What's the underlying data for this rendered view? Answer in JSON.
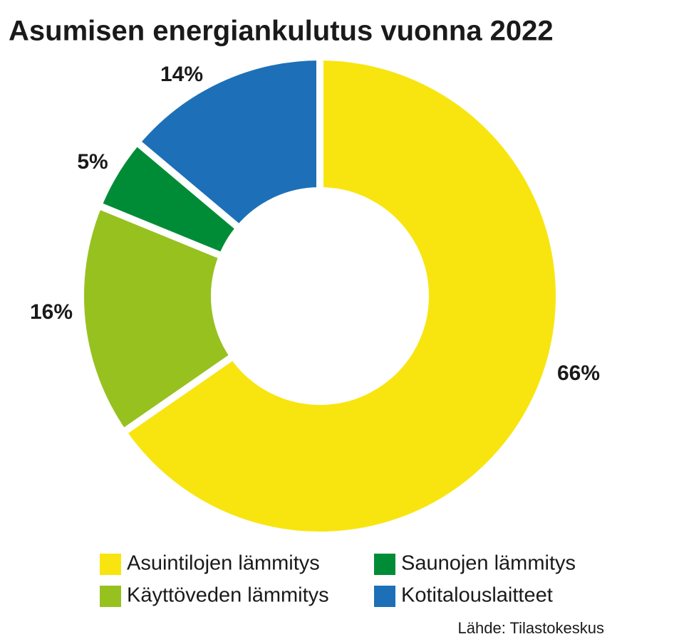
{
  "chart_data": {
    "type": "donut",
    "title": "Asumisen energiankulutus vuonna 2022",
    "categories": [
      "Asuintilojen lämmitys",
      "Käyttöveden lämmitys",
      "Saunojen lämmitys",
      "Kotitalouslaitteet"
    ],
    "values": [
      66,
      16,
      5,
      14
    ],
    "value_labels": [
      "66%",
      "16%",
      "5%",
      "14%"
    ],
    "colors": [
      "#f8e510",
      "#97c11f",
      "#008c36",
      "#1d70b7"
    ],
    "source": "Lähde: Tilastokeskus"
  }
}
